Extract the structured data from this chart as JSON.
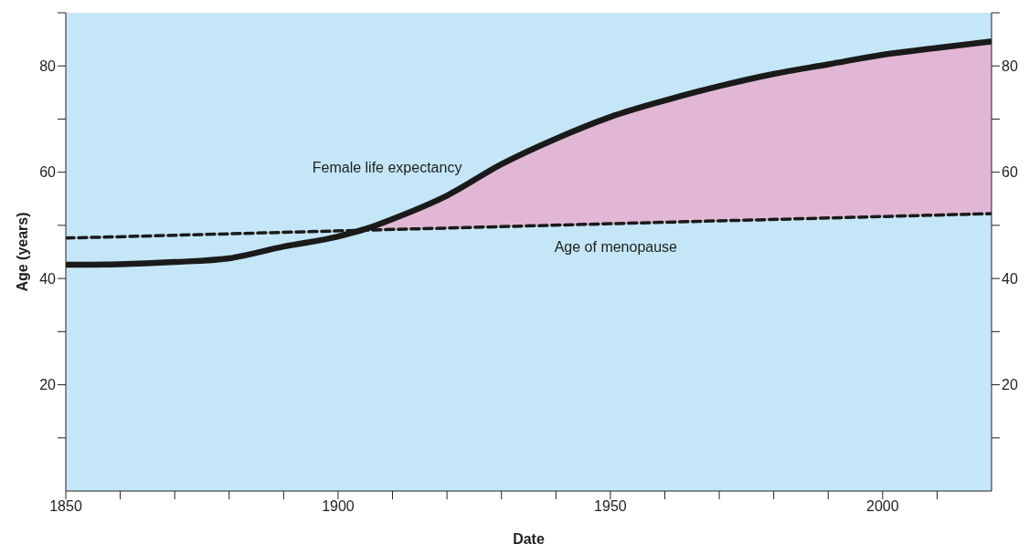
{
  "chart_data": {
    "type": "line",
    "xlabel": "Date",
    "ylabel": "Age (years)",
    "xlim": [
      1850,
      2020
    ],
    "xticks": [
      1850,
      {
        "value": 1860,
        "label": null
      },
      {
        "value": 1870,
        "label": null
      },
      {
        "value": 1880,
        "label": null
      },
      {
        "value": 1890,
        "label": null
      },
      1900,
      {
        "value": 1910,
        "label": null
      },
      {
        "value": 1920,
        "label": null
      },
      {
        "value": 1930,
        "label": null
      },
      {
        "value": 1940,
        "label": null
      },
      1950,
      {
        "value": 1960,
        "label": null
      },
      {
        "value": 1970,
        "label": null
      },
      {
        "value": 1980,
        "label": null
      },
      {
        "value": 1990,
        "label": null
      },
      2000,
      {
        "value": 2010,
        "label": null
      }
    ],
    "ylim": [
      0,
      90
    ],
    "yticks": [
      {
        "value": 10,
        "label": null
      },
      20,
      {
        "value": 30,
        "label": null
      },
      40,
      {
        "value": 50,
        "label": null
      },
      60,
      {
        "value": 70,
        "label": null
      },
      80,
      {
        "value": 90,
        "label": null
      }
    ],
    "y2lim": [
      0,
      90
    ],
    "y2ticks": [
      {
        "value": 10,
        "label": null
      },
      20,
      {
        "value": 30,
        "label": null
      },
      40,
      {
        "value": 50,
        "label": null
      },
      60,
      {
        "value": 70,
        "label": null
      },
      80,
      {
        "value": 90,
        "label": null
      }
    ],
    "marker": "none",
    "series": [
      {
        "name": "Female life expectancy",
        "color": "#1a1a1a",
        "line_style": "solid",
        "x": [
          1850,
          1860,
          1870,
          1880,
          1890,
          1900,
          1905,
          1910,
          1920,
          1930,
          1940,
          1950,
          1960,
          1970,
          1980,
          1990,
          2000,
          2010,
          2020
        ],
        "values": [
          42.6,
          42.7,
          43.1,
          43.8,
          46.0,
          47.9,
          49.3,
          51.2,
          55.6,
          61.5,
          66.3,
          70.4,
          73.5,
          76.2,
          78.5,
          80.3,
          82.1,
          83.4,
          84.6
        ],
        "lower": [
          null,
          null,
          null,
          null,
          null,
          null,
          49.1,
          49.2,
          49.5,
          49.8,
          50.0,
          50.3,
          50.6,
          50.8,
          51.1,
          51.4,
          51.7,
          51.9,
          52.2
        ],
        "upper": [
          null,
          null,
          null,
          null,
          null,
          null,
          49.3,
          51.2,
          55.6,
          61.5,
          66.3,
          70.4,
          73.5,
          76.2,
          78.5,
          80.3,
          82.1,
          83.4,
          84.6
        ]
      },
      {
        "name": "Age of menopause",
        "color": "#1a1a1a",
        "line_style": "dashed",
        "x": [
          1850,
          2020
        ],
        "values": [
          47.6,
          52.2
        ]
      }
    ]
  }
}
